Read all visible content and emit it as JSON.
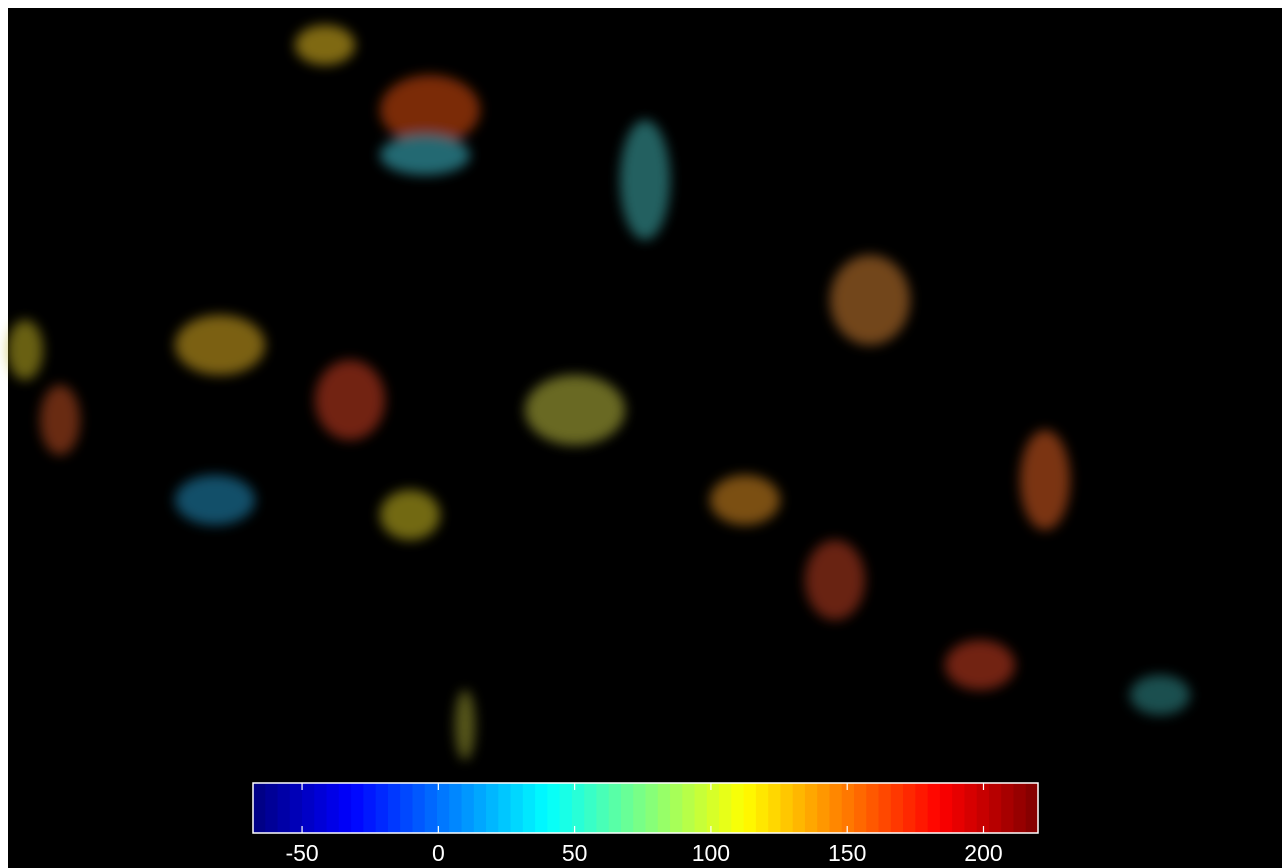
{
  "chart_data": {
    "type": "colorbar",
    "colormap": "jet",
    "clim": [
      -68,
      220
    ],
    "ticks": [
      -50,
      0,
      50,
      100,
      150,
      200
    ]
  }
}
